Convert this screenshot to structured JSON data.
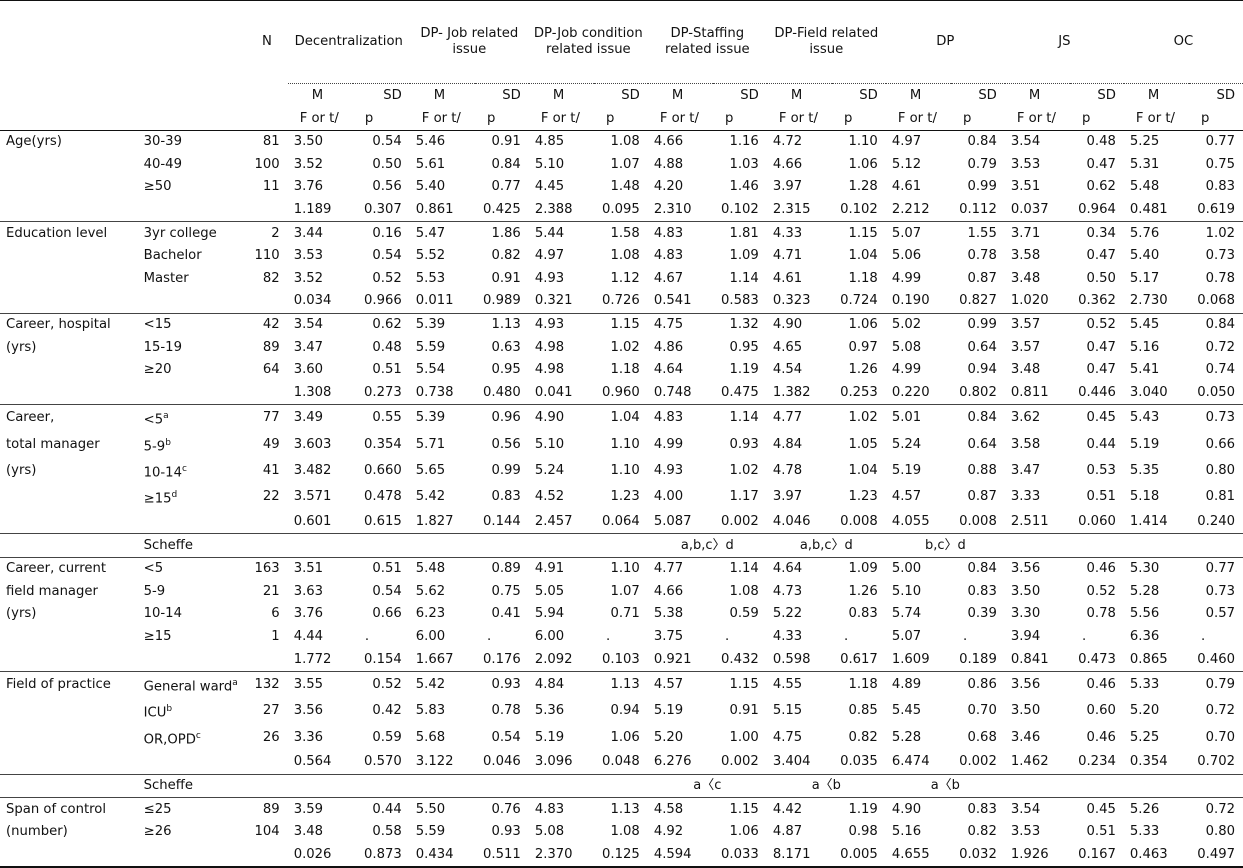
{
  "headers": {
    "n": "N",
    "cols": [
      {
        "label": "Decentralization"
      },
      {
        "label": "DP- Job related issue"
      },
      {
        "label": "DP-Job condition related issue"
      },
      {
        "label": "DP-Staffing related issue"
      },
      {
        "label": "DP-Field related issue"
      },
      {
        "label": "DP"
      },
      {
        "label": "JS"
      },
      {
        "label": "OC"
      }
    ],
    "m": "M",
    "sd": "SD",
    "f": "F or t/",
    "p": "p"
  },
  "groups": [
    {
      "label": "Age(yrs)",
      "rows": [
        {
          "cat": "30-39",
          "n": "81",
          "v": [
            "3.50",
            "0.54",
            "5.46",
            "0.91",
            "4.85",
            "1.08",
            "4.66",
            "1.16",
            "4.72",
            "1.10",
            "4.97",
            "0.84",
            "3.54",
            "0.48",
            "5.25",
            "0.77"
          ]
        },
        {
          "cat": "40-49",
          "n": "100",
          "v": [
            "3.52",
            "0.50",
            "5.61",
            "0.84",
            "5.10",
            "1.07",
            "4.88",
            "1.03",
            "4.66",
            "1.06",
            "5.12",
            "0.79",
            "3.53",
            "0.47",
            "5.31",
            "0.75"
          ]
        },
        {
          "cat": "≥50",
          "n": "11",
          "v": [
            "3.76",
            "0.56",
            "5.40",
            "0.77",
            "4.45",
            "1.48",
            "4.20",
            "1.46",
            "3.97",
            "1.28",
            "4.61",
            "0.99",
            "3.51",
            "0.62",
            "5.48",
            "0.83"
          ]
        },
        {
          "cat": "",
          "n": "",
          "v": [
            "1.189",
            "0.307",
            "0.861",
            "0.425",
            "2.388",
            "0.095",
            "2.310",
            "0.102",
            "2.315",
            "0.102",
            "2.212",
            "0.112",
            "0.037",
            "0.964",
            "0.481",
            "0.619"
          ]
        }
      ]
    },
    {
      "label": "Education level",
      "rows": [
        {
          "cat": "3yr college",
          "n": "2",
          "v": [
            "3.44",
            "0.16",
            "5.47",
            "1.86",
            "5.44",
            "1.58",
            "4.83",
            "1.81",
            "4.33",
            "1.15",
            "5.07",
            "1.55",
            "3.71",
            "0.34",
            "5.76",
            "1.02"
          ]
        },
        {
          "cat": "Bachelor",
          "n": "110",
          "v": [
            "3.53",
            "0.54",
            "5.52",
            "0.82",
            "4.97",
            "1.08",
            "4.83",
            "1.09",
            "4.71",
            "1.04",
            "5.06",
            "0.78",
            "3.58",
            "0.47",
            "5.40",
            "0.73"
          ]
        },
        {
          "cat": "Master",
          "n": "82",
          "v": [
            "3.52",
            "0.52",
            "5.53",
            "0.91",
            "4.93",
            "1.12",
            "4.67",
            "1.14",
            "4.61",
            "1.18",
            "4.99",
            "0.87",
            "3.48",
            "0.50",
            "5.17",
            "0.78"
          ]
        },
        {
          "cat": "",
          "n": "",
          "v": [
            "0.034",
            "0.966",
            "0.011",
            "0.989",
            "0.321",
            "0.726",
            "0.541",
            "0.583",
            "0.323",
            "0.724",
            "0.190",
            "0.827",
            "1.020",
            "0.362",
            "2.730",
            "0.068"
          ]
        }
      ]
    },
    {
      "label": "Career, hospital",
      "label2": "(yrs)",
      "rows": [
        {
          "cat": "<15",
          "n": "42",
          "v": [
            "3.54",
            "0.62",
            "5.39",
            "1.13",
            "4.93",
            "1.15",
            "4.75",
            "1.32",
            "4.90",
            "1.06",
            "5.02",
            "0.99",
            "3.57",
            "0.52",
            "5.45",
            "0.84"
          ]
        },
        {
          "cat": "15-19",
          "n": "89",
          "v": [
            "3.47",
            "0.48",
            "5.59",
            "0.63",
            "4.98",
            "1.02",
            "4.86",
            "0.95",
            "4.65",
            "0.97",
            "5.08",
            "0.64",
            "3.57",
            "0.47",
            "5.16",
            "0.72"
          ]
        },
        {
          "cat": "≥20",
          "n": "64",
          "v": [
            "3.60",
            "0.51",
            "5.54",
            "0.95",
            "4.98",
            "1.18",
            "4.64",
            "1.19",
            "4.54",
            "1.26",
            "4.99",
            "0.94",
            "3.48",
            "0.47",
            "5.41",
            "0.74"
          ]
        },
        {
          "cat": "",
          "n": "",
          "v": [
            "1.308",
            "0.273",
            "0.738",
            "0.480",
            "0.041",
            "0.960",
            "0.748",
            "0.475",
            "1.382",
            "0.253",
            "0.220",
            "0.802",
            "0.811",
            "0.446",
            "3.040",
            "0.050"
          ]
        }
      ]
    },
    {
      "label": "Career,",
      "label2": "total manager",
      "label3": "(yrs)",
      "rows": [
        {
          "cat": "<5",
          "sup": "a",
          "n": "77",
          "v": [
            "3.49",
            "0.55",
            "5.39",
            "0.96",
            "4.90",
            "1.04",
            "4.83",
            "1.14",
            "4.77",
            "1.02",
            "5.01",
            "0.84",
            "3.62",
            "0.45",
            "5.43",
            "0.73"
          ]
        },
        {
          "cat": "5-9",
          "sup": "b",
          "n": "49",
          "v": [
            "3.603",
            "0.354",
            "5.71",
            "0.56",
            "5.10",
            "1.10",
            "4.99",
            "0.93",
            "4.84",
            "1.05",
            "5.24",
            "0.64",
            "3.58",
            "0.44",
            "5.19",
            "0.66"
          ]
        },
        {
          "cat": "10-14",
          "sup": "c",
          "n": "41",
          "v": [
            "3.482",
            "0.660",
            "5.65",
            "0.99",
            "5.24",
            "1.10",
            "4.93",
            "1.02",
            "4.78",
            "1.04",
            "5.19",
            "0.88",
            "3.47",
            "0.53",
            "5.35",
            "0.80"
          ]
        },
        {
          "cat": "≥15",
          "sup": "d",
          "n": "22",
          "v": [
            "3.571",
            "0.478",
            "5.42",
            "0.83",
            "4.52",
            "1.23",
            "4.00",
            "1.17",
            "3.97",
            "1.23",
            "4.57",
            "0.87",
            "3.33",
            "0.51",
            "5.18",
            "0.81"
          ]
        },
        {
          "cat": "",
          "n": "",
          "v": [
            "0.601",
            "0.615",
            "1.827",
            "0.144",
            "2.457",
            "0.064",
            "5.087",
            "0.002",
            "4.046",
            "0.008",
            "4.055",
            "0.008",
            "2.511",
            "0.060",
            "1.414",
            "0.240"
          ]
        }
      ],
      "scheffe": {
        "label": "Scheffe",
        "staffing": "a,b,c〉d",
        "field": "a,b,c〉d",
        "dp": "b,c〉d"
      }
    },
    {
      "label": "Career, current",
      "label2": "field manager",
      "label3": "(yrs)",
      "rows": [
        {
          "cat": "<5",
          "n": "163",
          "v": [
            "3.51",
            "0.51",
            "5.48",
            "0.89",
            "4.91",
            "1.10",
            "4.77",
            "1.14",
            "4.64",
            "1.09",
            "5.00",
            "0.84",
            "3.56",
            "0.46",
            "5.30",
            "0.77"
          ]
        },
        {
          "cat": "5-9",
          "n": "21",
          "v": [
            "3.63",
            "0.54",
            "5.62",
            "0.75",
            "5.05",
            "1.07",
            "4.66",
            "1.08",
            "4.73",
            "1.26",
            "5.10",
            "0.83",
            "3.50",
            "0.52",
            "5.28",
            "0.73"
          ]
        },
        {
          "cat": "10-14",
          "n": "6",
          "v": [
            "3.76",
            "0.66",
            "6.23",
            "0.41",
            "5.94",
            "0.71",
            "5.38",
            "0.59",
            "5.22",
            "0.83",
            "5.74",
            "0.39",
            "3.30",
            "0.78",
            "5.56",
            "0.57"
          ]
        },
        {
          "cat": "≥15",
          "n": "1",
          "v": [
            "4.44",
            ".",
            "6.00",
            ".",
            "6.00",
            ".",
            "3.75",
            ".",
            "4.33",
            ".",
            "5.07",
            ".",
            "3.94",
            ".",
            "6.36",
            "."
          ]
        },
        {
          "cat": "",
          "n": "",
          "v": [
            "1.772",
            "0.154",
            "1.667",
            "0.176",
            "2.092",
            "0.103",
            "0.921",
            "0.432",
            "0.598",
            "0.617",
            "1.609",
            "0.189",
            "0.841",
            "0.473",
            "0.865",
            "0.460"
          ]
        }
      ]
    },
    {
      "label": "Field of practice",
      "rows": [
        {
          "cat": "General ward",
          "sup": "a",
          "n": "132",
          "v": [
            "3.55",
            "0.52",
            "5.42",
            "0.93",
            "4.84",
            "1.13",
            "4.57",
            "1.15",
            "4.55",
            "1.18",
            "4.89",
            "0.86",
            "3.56",
            "0.46",
            "5.33",
            "0.79"
          ]
        },
        {
          "cat": "ICU",
          "sup": "b",
          "n": "27",
          "v": [
            "3.56",
            "0.42",
            "5.83",
            "0.78",
            "5.36",
            "0.94",
            "5.19",
            "0.91",
            "5.15",
            "0.85",
            "5.45",
            "0.70",
            "3.50",
            "0.60",
            "5.20",
            "0.72"
          ]
        },
        {
          "cat": "OR,OPD",
          "sup": "c",
          "n": "26",
          "v": [
            "3.36",
            "0.59",
            "5.68",
            "0.54",
            "5.19",
            "1.06",
            "5.20",
            "1.00",
            "4.75",
            "0.82",
            "5.28",
            "0.68",
            "3.46",
            "0.46",
            "5.25",
            "0.70"
          ]
        },
        {
          "cat": "",
          "n": "",
          "v": [
            "0.564",
            "0.570",
            "3.122",
            "0.046",
            "3.096",
            "0.048",
            "6.276",
            "0.002",
            "3.404",
            "0.035",
            "6.474",
            "0.002",
            "1.462",
            "0.234",
            "0.354",
            "0.702"
          ]
        }
      ],
      "scheffe": {
        "label": "Scheffe",
        "staffing": "a〈c",
        "field": "a〈b",
        "dp": "a〈b"
      }
    },
    {
      "label": "Span of control",
      "label2": "(number)",
      "rows": [
        {
          "cat": "≤25",
          "n": "89",
          "v": [
            "3.59",
            "0.44",
            "5.50",
            "0.76",
            "4.83",
            "1.13",
            "4.58",
            "1.15",
            "4.42",
            "1.19",
            "4.90",
            "0.83",
            "3.54",
            "0.45",
            "5.26",
            "0.72"
          ]
        },
        {
          "cat": "≥26",
          "n": "104",
          "v": [
            "3.48",
            "0.58",
            "5.59",
            "0.93",
            "5.08",
            "1.08",
            "4.92",
            "1.06",
            "4.87",
            "0.98",
            "5.16",
            "0.82",
            "3.53",
            "0.51",
            "5.33",
            "0.80"
          ]
        },
        {
          "cat": "",
          "n": "",
          "v": [
            "0.026",
            "0.873",
            "0.434",
            "0.511",
            "2.370",
            "0.125",
            "4.594",
            "0.033",
            "8.171",
            "0.005",
            "4.655",
            "0.032",
            "1.926",
            "0.167",
            "0.463",
            "0.497"
          ]
        }
      ]
    }
  ]
}
